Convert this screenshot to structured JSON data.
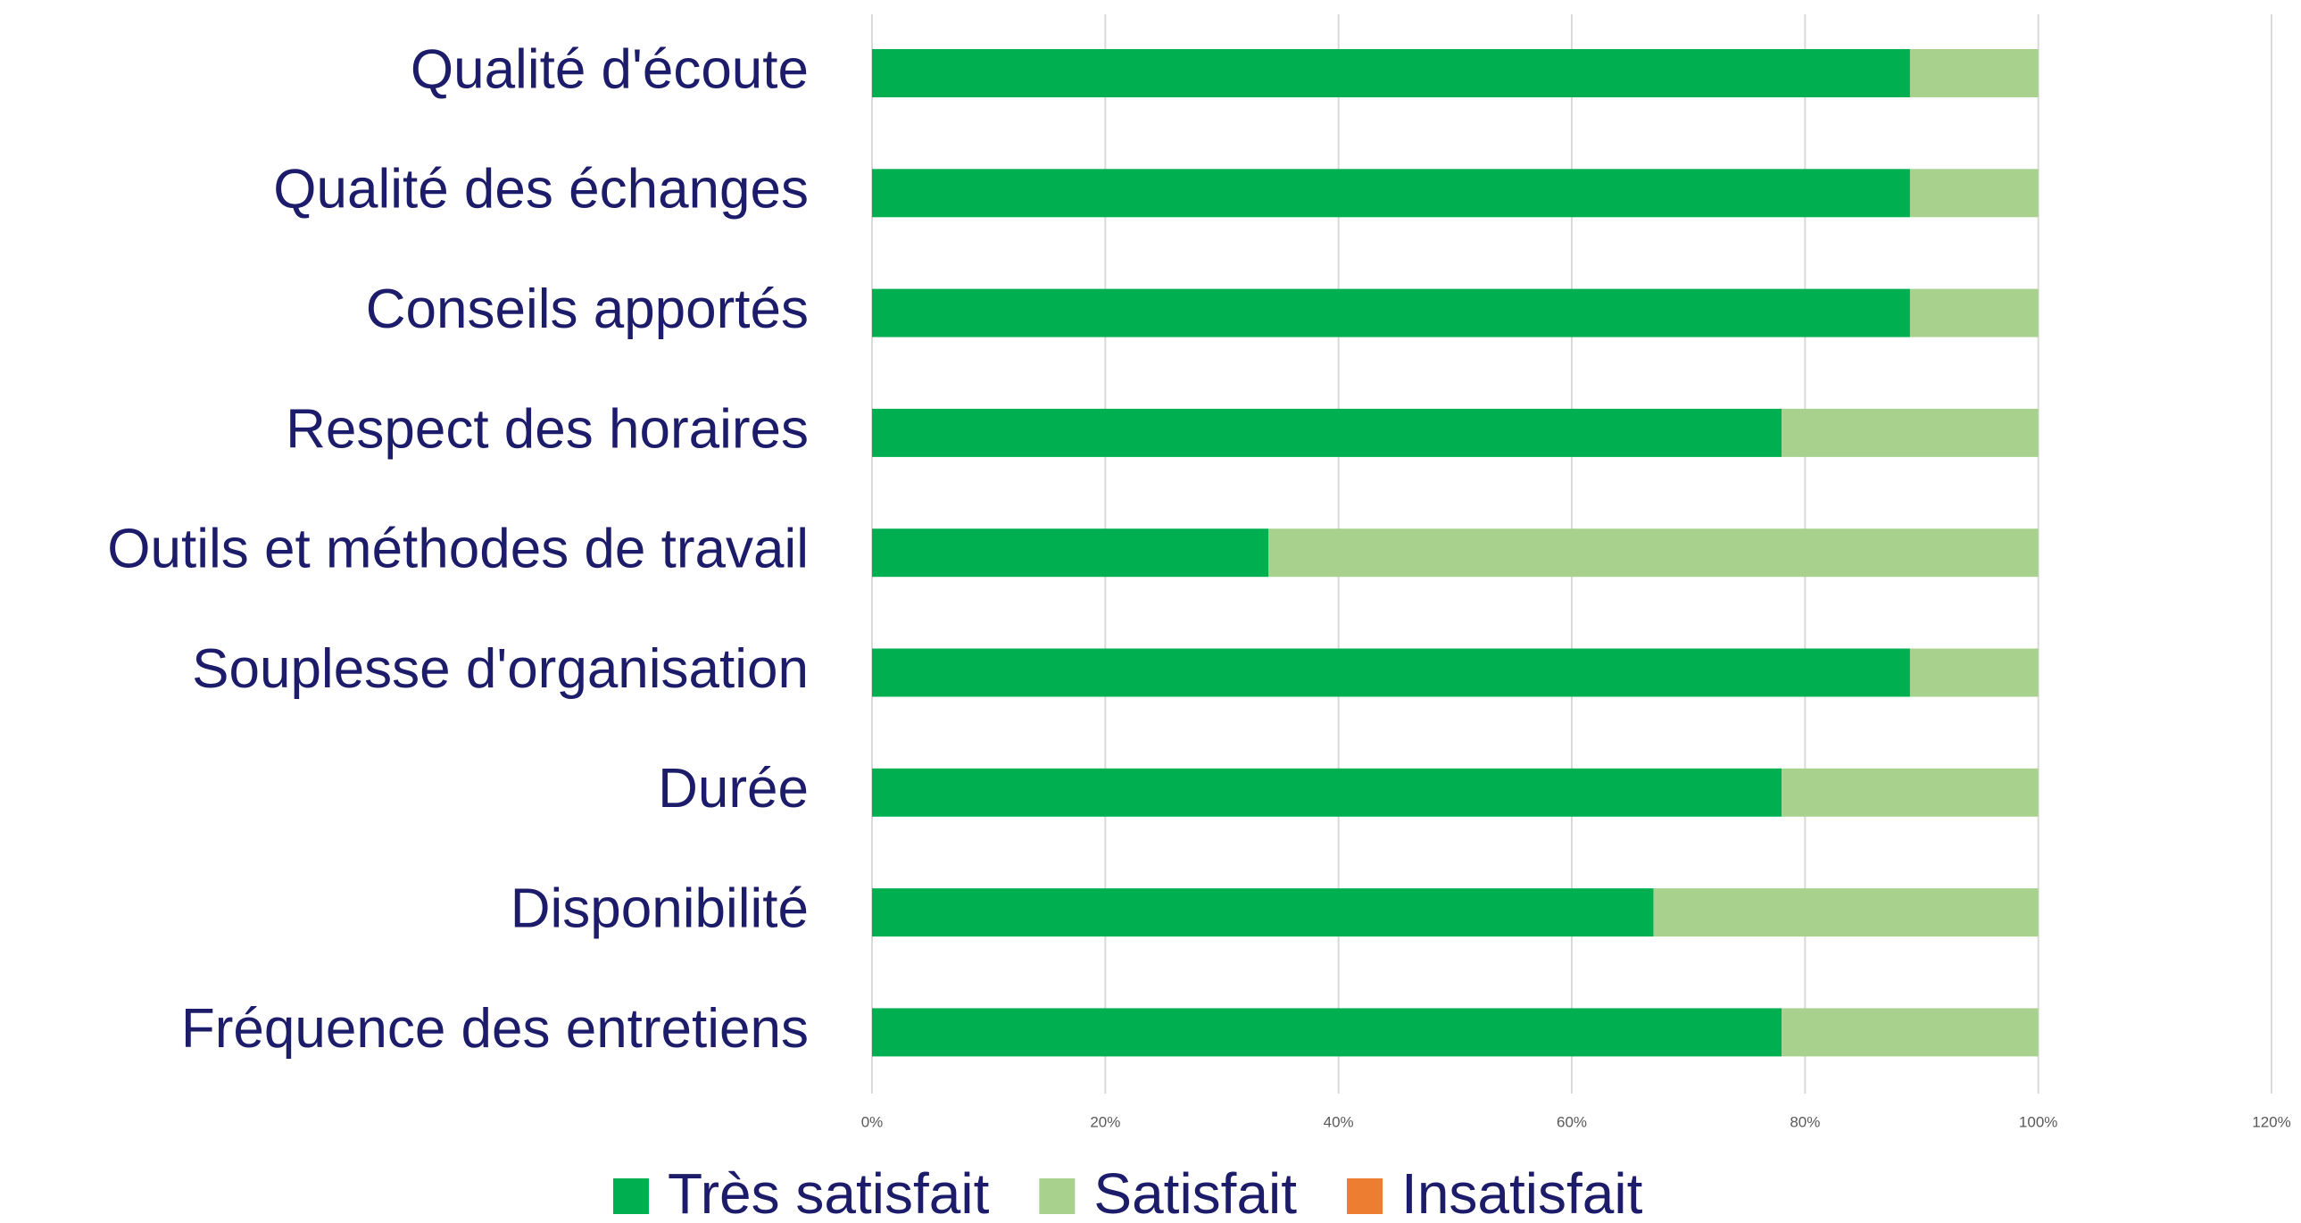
{
  "chart_data": {
    "type": "bar",
    "orientation": "horizontal",
    "stacked": true,
    "categories": [
      "Qualité d'écoute",
      "Qualité des échanges",
      "Conseils apportés",
      "Respect des horaires",
      "Outils et méthodes de travail",
      "Souplesse d'organisation",
      "Durée",
      "Disponibilité",
      "Fréquence des entretiens"
    ],
    "series": [
      {
        "name": "Très satisfait",
        "color": "#00b050",
        "values": [
          89,
          89,
          89,
          78,
          34,
          89,
          78,
          67,
          78
        ]
      },
      {
        "name": "Satisfait",
        "color": "#a9d18e",
        "values": [
          11,
          11,
          11,
          22,
          66,
          11,
          22,
          33,
          22
        ]
      },
      {
        "name": "Insatisfait",
        "color": "#ed7d31",
        "values": [
          0,
          0,
          0,
          0,
          0,
          0,
          0,
          0,
          0
        ]
      }
    ],
    "xlim": [
      0,
      120
    ],
    "xticks": [
      {
        "value": 0,
        "label": "0%"
      },
      {
        "value": 20,
        "label": "20%"
      },
      {
        "value": 40,
        "label": "40%"
      },
      {
        "value": 60,
        "label": "60%"
      },
      {
        "value": 80,
        "label": "80%"
      },
      {
        "value": 100,
        "label": "100%"
      },
      {
        "value": 120,
        "label": "120%"
      }
    ],
    "grid": true,
    "legend": "bottom"
  }
}
